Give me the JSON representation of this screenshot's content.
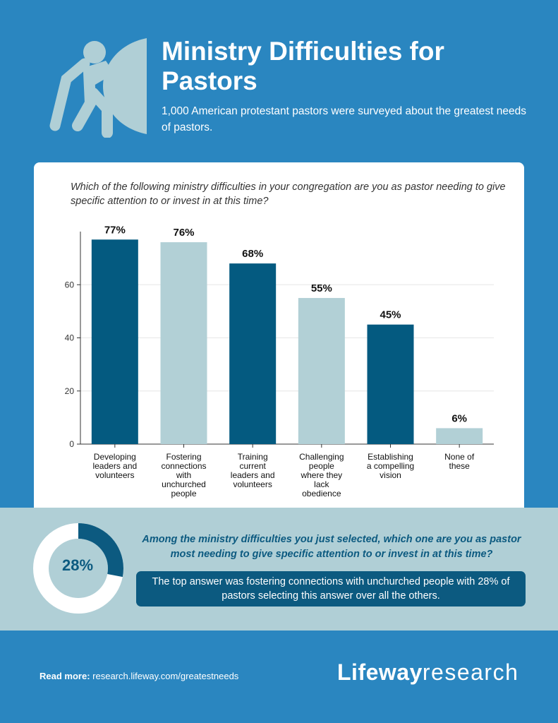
{
  "header": {
    "title": "Ministry Difficulties for Pastors",
    "subtitle": "1,000 American protestant pastors were surveyed about the greatest needs of pastors.",
    "icon": "person-pushing-door-icon"
  },
  "main_chart": {
    "question": "Which of the following ministry difficulties in your congregation are you as pastor needing to give specific attention to or invest in at this time?"
  },
  "colors": {
    "background": "#2a86c0",
    "dark_bar": "#045a80",
    "light_bar": "#b2d0d6",
    "band": "#b0cfd6",
    "answer_box": "#0c5a80"
  },
  "chart_data": {
    "type": "bar",
    "categories": [
      [
        "Developing",
        "leaders and",
        "volunteers"
      ],
      [
        "Fostering",
        "connections",
        "with",
        "unchurched",
        "people"
      ],
      [
        "Training",
        "current",
        "leaders and",
        "volunteers"
      ],
      [
        "Challenging",
        "people",
        "where they",
        "lack",
        "obedience"
      ],
      [
        "Establishing",
        "a compelling",
        "vision"
      ],
      [
        "None of",
        "these"
      ]
    ],
    "values": [
      77,
      76,
      68,
      55,
      45,
      6
    ],
    "value_labels": [
      "77%",
      "76%",
      "68%",
      "55%",
      "45%",
      "6%"
    ],
    "yticks": [
      0,
      20,
      40,
      60
    ],
    "ylim": [
      0,
      80
    ],
    "grid": true
  },
  "followup": {
    "question": "Among the ministry difficulties you just selected, which one are you as pastor most needing to give specific attention to or invest in at this time?",
    "answer": "The top answer was fostering connections with unchurched people with 28% of pastors selecting this answer over all the others.",
    "donut_value": 28,
    "donut_label": "28%"
  },
  "footer": {
    "read_more_label": "Read more:",
    "url": "research.lifeway.com/greatestneeds",
    "logo_bold": "Lifeway",
    "logo_light": "research"
  }
}
